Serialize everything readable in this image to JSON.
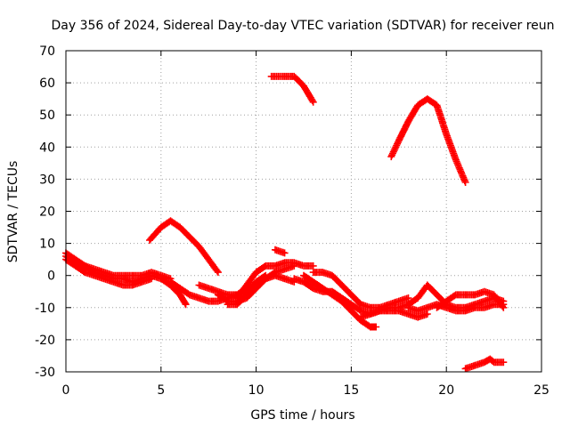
{
  "chart_data": {
    "type": "scatter",
    "title": "Day 356 of 2024, Sidereal Day-to-day VTEC variation (SDTVAR) for receiver reun",
    "xlabel": "GPS time / hours",
    "ylabel": "SDTVAR / TECUs",
    "xlim": [
      0,
      25
    ],
    "ylim": [
      -30,
      70
    ],
    "xticks": [
      0,
      5,
      10,
      15,
      20,
      25
    ],
    "yticks": [
      -30,
      -20,
      -10,
      0,
      10,
      20,
      30,
      40,
      50,
      60,
      70
    ],
    "grid": true,
    "marker": "+",
    "color": "#ff0000",
    "series": [
      {
        "name": "trace-1",
        "points": [
          [
            0,
            6
          ],
          [
            0.5,
            4
          ],
          [
            1,
            3
          ],
          [
            1.5,
            1
          ],
          [
            2,
            0
          ],
          [
            2.5,
            -1
          ],
          [
            3,
            -1
          ],
          [
            3.5,
            -2
          ],
          [
            4,
            -1
          ],
          [
            4.5,
            0
          ],
          [
            5,
            -1
          ],
          [
            5.5,
            -3
          ],
          [
            6,
            -6
          ],
          [
            6.3,
            -9
          ]
        ]
      },
      {
        "name": "trace-2",
        "points": [
          [
            0,
            7
          ],
          [
            0.5,
            5
          ],
          [
            1,
            3
          ],
          [
            1.5,
            2
          ],
          [
            2,
            1
          ],
          [
            2.5,
            0
          ],
          [
            3,
            0
          ],
          [
            3.5,
            0
          ],
          [
            4,
            0
          ],
          [
            4.5,
            1
          ],
          [
            5,
            0
          ],
          [
            5.5,
            -1
          ]
        ]
      },
      {
        "name": "trace-3",
        "points": [
          [
            0,
            5
          ],
          [
            0.5,
            3
          ],
          [
            1,
            1
          ],
          [
            1.5,
            0
          ],
          [
            2,
            -1
          ],
          [
            2.5,
            -2
          ],
          [
            3,
            -3
          ],
          [
            3.5,
            -3
          ],
          [
            4,
            -2
          ],
          [
            4.5,
            -1
          ]
        ]
      },
      {
        "name": "trace-4",
        "points": [
          [
            4.4,
            11
          ],
          [
            5,
            15
          ],
          [
            5.5,
            17
          ],
          [
            6,
            15
          ],
          [
            6.5,
            12
          ],
          [
            7,
            9
          ],
          [
            7.5,
            5
          ],
          [
            8,
            1
          ]
        ]
      },
      {
        "name": "trace-5",
        "points": [
          [
            5.5,
            -2
          ],
          [
            6,
            -4
          ],
          [
            6.5,
            -6
          ],
          [
            7,
            -7
          ],
          [
            7.5,
            -8
          ],
          [
            8,
            -8
          ],
          [
            8.5,
            -7
          ],
          [
            9,
            -6
          ],
          [
            9.5,
            -4
          ]
        ]
      },
      {
        "name": "trace-6",
        "points": [
          [
            7,
            -3
          ],
          [
            7.5,
            -4
          ],
          [
            8,
            -5
          ],
          [
            8.5,
            -6
          ],
          [
            9,
            -6
          ],
          [
            9.5,
            -5
          ],
          [
            10,
            -2
          ],
          [
            10.5,
            0
          ]
        ]
      },
      {
        "name": "trace-7",
        "points": [
          [
            8,
            -6
          ],
          [
            8.5,
            -8
          ],
          [
            9,
            -8
          ],
          [
            9.5,
            -7
          ],
          [
            10,
            -4
          ],
          [
            10.5,
            -1
          ],
          [
            11,
            1
          ],
          [
            11.5,
            2
          ],
          [
            12,
            3
          ]
        ]
      },
      {
        "name": "trace-8",
        "points": [
          [
            8.5,
            -9
          ],
          [
            9,
            -9
          ],
          [
            9.5,
            -6
          ],
          [
            10,
            -3
          ],
          [
            10.5,
            -1
          ],
          [
            11,
            0
          ],
          [
            11.5,
            -1
          ],
          [
            12,
            -2
          ]
        ]
      },
      {
        "name": "trace-9",
        "points": [
          [
            9,
            -7
          ],
          [
            9.5,
            -3
          ],
          [
            10,
            1
          ],
          [
            10.5,
            3
          ],
          [
            11,
            3
          ],
          [
            11.5,
            4
          ],
          [
            12,
            4
          ],
          [
            12.5,
            3
          ],
          [
            13,
            3
          ]
        ]
      },
      {
        "name": "trace-10",
        "points": [
          [
            11,
            8
          ],
          [
            11.5,
            7
          ]
        ]
      },
      {
        "name": "trace-11",
        "points": [
          [
            10.8,
            62
          ],
          [
            11.5,
            62
          ],
          [
            12,
            62
          ],
          [
            12.5,
            59
          ],
          [
            13,
            54
          ]
        ]
      },
      {
        "name": "trace-12",
        "points": [
          [
            12,
            -1
          ],
          [
            12.5,
            -2
          ],
          [
            13,
            -4
          ],
          [
            13.5,
            -5
          ],
          [
            14,
            -5
          ],
          [
            14.5,
            -7
          ],
          [
            15,
            -9
          ],
          [
            15.5,
            -11
          ],
          [
            16,
            -12
          ],
          [
            16.5,
            -11
          ],
          [
            17,
            -11
          ],
          [
            17.5,
            -11
          ],
          [
            18,
            -12
          ],
          [
            18.5,
            -13
          ],
          [
            19,
            -12
          ]
        ]
      },
      {
        "name": "trace-13",
        "points": [
          [
            12.5,
            0
          ],
          [
            13,
            -2
          ],
          [
            13.5,
            -4
          ],
          [
            14,
            -6
          ],
          [
            14.5,
            -8
          ],
          [
            15,
            -11
          ],
          [
            15.5,
            -14
          ],
          [
            16,
            -16
          ],
          [
            16.3,
            -16
          ]
        ]
      },
      {
        "name": "trace-14",
        "points": [
          [
            13,
            1
          ],
          [
            13.5,
            1
          ],
          [
            14,
            0
          ],
          [
            14.5,
            -3
          ],
          [
            15,
            -6
          ],
          [
            15.5,
            -9
          ],
          [
            16,
            -10
          ],
          [
            16.5,
            -10
          ],
          [
            17,
            -9
          ],
          [
            17.5,
            -8
          ],
          [
            18,
            -7
          ]
        ]
      },
      {
        "name": "trace-15",
        "points": [
          [
            15.5,
            -13
          ],
          [
            16,
            -12
          ],
          [
            16.5,
            -11
          ],
          [
            17,
            -10
          ],
          [
            17.5,
            -10
          ],
          [
            18,
            -9
          ],
          [
            18.5,
            -7
          ],
          [
            19,
            -3
          ],
          [
            19.5,
            -6
          ],
          [
            20,
            -9
          ],
          [
            20.5,
            -10
          ],
          [
            21,
            -10
          ],
          [
            21.5,
            -9
          ],
          [
            22,
            -8
          ],
          [
            22.5,
            -7
          ],
          [
            23,
            -8
          ]
        ]
      },
      {
        "name": "trace-16",
        "points": [
          [
            18,
            -10
          ],
          [
            18.5,
            -11
          ],
          [
            19,
            -10
          ],
          [
            19.5,
            -9
          ],
          [
            20,
            -10
          ],
          [
            20.5,
            -11
          ],
          [
            21,
            -11
          ],
          [
            21.5,
            -10
          ],
          [
            22,
            -10
          ],
          [
            22.5,
            -9
          ],
          [
            23,
            -9
          ]
        ]
      },
      {
        "name": "trace-17",
        "points": [
          [
            19.5,
            -10
          ],
          [
            20,
            -8
          ],
          [
            20.5,
            -6
          ],
          [
            21,
            -6
          ],
          [
            21.5,
            -6
          ],
          [
            22,
            -5
          ],
          [
            22.5,
            -6
          ],
          [
            23,
            -10
          ]
        ]
      },
      {
        "name": "trace-18",
        "points": [
          [
            17.1,
            37
          ],
          [
            17.5,
            42
          ],
          [
            18,
            48
          ],
          [
            18.5,
            53
          ],
          [
            19,
            55
          ],
          [
            19.5,
            53
          ],
          [
            20,
            44
          ],
          [
            20.5,
            36
          ],
          [
            21,
            29
          ]
        ]
      },
      {
        "name": "trace-19",
        "points": [
          [
            21,
            -29
          ],
          [
            21.5,
            -28
          ],
          [
            22,
            -27
          ],
          [
            22.3,
            -26
          ],
          [
            22.5,
            -27
          ],
          [
            23,
            -27
          ]
        ]
      }
    ]
  }
}
